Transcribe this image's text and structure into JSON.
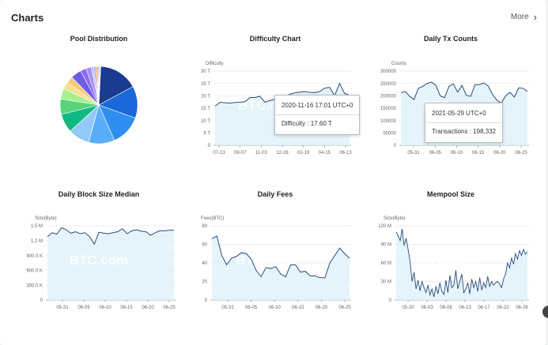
{
  "header": {
    "title": "Charts",
    "more_label": "More",
    "more_icon": "chevron-right-icon"
  },
  "watermark": "BTC.com",
  "tooltips": {
    "difficulty": {
      "time": "2020-11-16 17:01 UTC+0",
      "label": "Difficulty",
      "value": "17.60 T"
    },
    "txcounts": {
      "time": "2021-05-29 UTC+0",
      "label": "Transactions",
      "value": "198,332"
    }
  },
  "chart_data": [
    {
      "id": "pool",
      "type": "pie",
      "title": "Pool Distribution",
      "colors": [
        "#1a3b8f",
        "#1c67d9",
        "#2e8ff0",
        "#5aaef7",
        "#92c9f8",
        "#10b981",
        "#58d47c",
        "#a7ef8f",
        "#f7e08b",
        "#f5c97a",
        "#6c5ce7",
        "#8a6cf5",
        "#a98df8",
        "#c4b5fd",
        "#7fb4f9",
        "#f7a44a",
        "#c8a2f5",
        "#9aa6b5",
        "#5da9e9",
        "#cfd8e3"
      ],
      "values": [
        16.5,
        13.5,
        13.0,
        11.0,
        9.0,
        8.0,
        6.5,
        4.5,
        3.0,
        2.8,
        4.5,
        2.5,
        2.2,
        0.9,
        0.8,
        0.7,
        0.5,
        0.4,
        0.4,
        0.3
      ]
    },
    {
      "id": "difficulty",
      "type": "line",
      "title": "Difficulty Chart",
      "ylabel": "Difficulty",
      "yticks": [
        "0",
        "5 T",
        "10 T",
        "15 T",
        "20 T",
        "25 T",
        "30 T"
      ],
      "ymax": 30,
      "xticks": [
        "07-13",
        "09-07",
        "11-03",
        "12-28",
        "02-19",
        "04-15",
        "06-13"
      ],
      "values": [
        15.8,
        17.4,
        17.2,
        17.0,
        17.3,
        17.4,
        17.6,
        19.3,
        19.3,
        19.8,
        17.4,
        18.1,
        18.6,
        19.9,
        19.7,
        20.6,
        21.2,
        21.5,
        21.7,
        21.4,
        21.3,
        21.7,
        23.1,
        23.4,
        20.0,
        25.0,
        21.0,
        20.2
      ]
    },
    {
      "id": "txcounts",
      "type": "line",
      "title": "Daily Tx Counts",
      "ylabel": "Counts",
      "yticks": [
        "0",
        "50000",
        "100000",
        "150000",
        "200000",
        "250000",
        "300000"
      ],
      "ymax": 300000,
      "xticks": [
        "05-31",
        "06-05",
        "06-10",
        "06-15",
        "06-20",
        "06-25"
      ],
      "values": [
        212000,
        218000,
        198000,
        185000,
        230000,
        238000,
        250000,
        255000,
        243000,
        200000,
        192000,
        238000,
        248000,
        215000,
        242000,
        202000,
        198000,
        245000,
        245000,
        252000,
        240000,
        205000,
        182000,
        170000,
        200000,
        214000,
        195000,
        232000,
        230000,
        218000
      ]
    },
    {
      "id": "blocksize",
      "type": "line",
      "title": "Daily Block Size Median",
      "ylabel": "Size(Byte)",
      "yticks": [
        "0",
        "300.0 K",
        "600.0 K",
        "900.0 K",
        "1.2 M",
        "1.5 M"
      ],
      "ymax": 1500,
      "xticks": [
        "05-31",
        "06-05",
        "06-10",
        "06-15",
        "06-20",
        "06-25"
      ],
      "values": [
        1280,
        1360,
        1330,
        1460,
        1420,
        1350,
        1380,
        1340,
        1360,
        1280,
        1130,
        1370,
        1350,
        1340,
        1360,
        1380,
        1440,
        1340,
        1400,
        1420,
        1390,
        1380,
        1310,
        1360,
        1400,
        1400,
        1410,
        1410
      ]
    },
    {
      "id": "fees",
      "type": "line",
      "title": "Daily Fees",
      "ylabel": "Fees(BTC)",
      "yticks": [
        "0",
        "20",
        "40",
        "60",
        "80"
      ],
      "ymax": 80,
      "xticks": [
        "05-31",
        "06-05",
        "06-10",
        "06-15",
        "06-20",
        "06-25"
      ],
      "values": [
        66,
        69,
        48,
        38,
        45,
        47,
        51,
        50,
        44,
        32,
        25,
        35,
        34,
        36,
        28,
        25,
        38,
        38,
        30,
        31,
        26,
        26,
        24,
        24,
        40,
        48,
        56,
        50,
        45
      ]
    },
    {
      "id": "mempool",
      "type": "line",
      "title": "Mempool Size",
      "ylabel": "Size(Byte)",
      "yticks": [
        "0",
        "30 M",
        "60 M",
        "90 M",
        "120 M"
      ],
      "ymax": 120,
      "xticks": [
        "05-30",
        "06-03",
        "06-08",
        "06-13",
        "06-17",
        "06-22",
        "06-26"
      ],
      "values": [
        110,
        104,
        96,
        115,
        88,
        100,
        82,
        62,
        30,
        45,
        18,
        32,
        15,
        30,
        20,
        12,
        24,
        8,
        18,
        5,
        22,
        10,
        28,
        14,
        9,
        32,
        12,
        40,
        20,
        24,
        48,
        18,
        30,
        42,
        12,
        18,
        28,
        10,
        34,
        20,
        30,
        14,
        36,
        16,
        28,
        20,
        38,
        22,
        30,
        24,
        28,
        30,
        26,
        20,
        34,
        42,
        60,
        52,
        68,
        58,
        75,
        66,
        80,
        72,
        82,
        74,
        78
      ]
    }
  ]
}
